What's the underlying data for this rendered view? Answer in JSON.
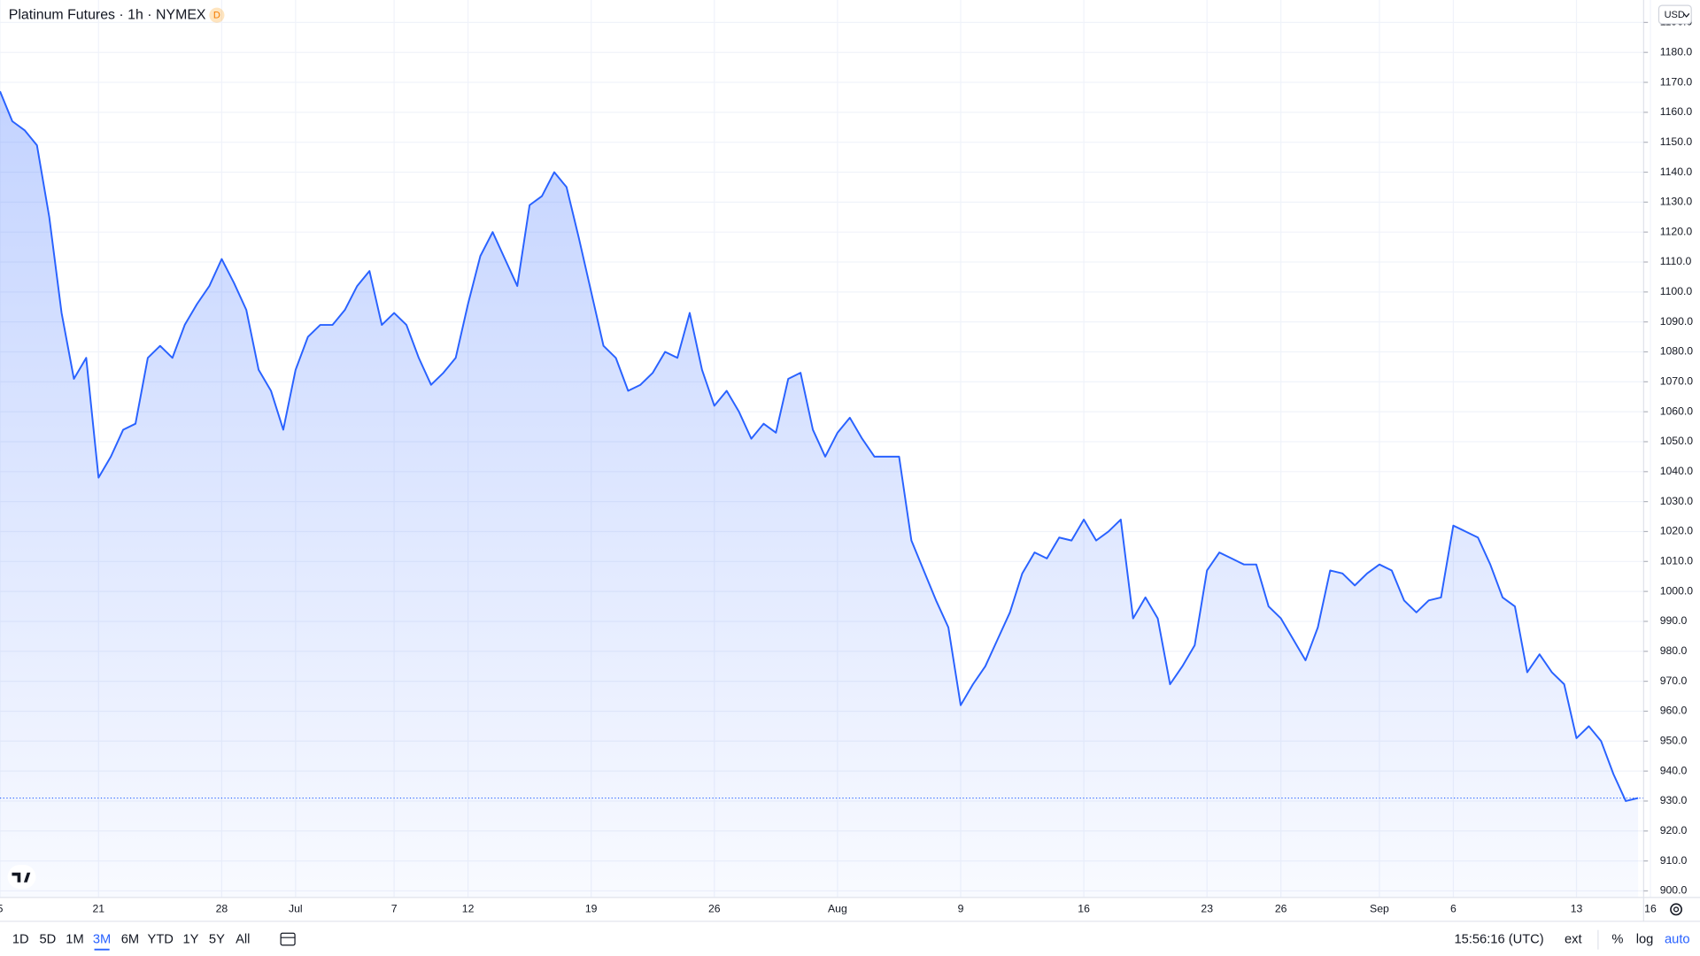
{
  "header": {
    "title": "Platinum Futures · 1h · NYMEX",
    "badge": "D",
    "currency": "USD"
  },
  "chart_data": {
    "type": "area",
    "categories": [
      "5",
      null,
      null,
      null,
      null,
      null,
      null,
      null,
      "21",
      null,
      null,
      null,
      null,
      null,
      null,
      null,
      null,
      null,
      "28",
      null,
      null,
      null,
      null,
      null,
      "Jul",
      null,
      null,
      null,
      null,
      null,
      null,
      null,
      "7",
      null,
      null,
      null,
      null,
      null,
      "12",
      null,
      null,
      null,
      null,
      null,
      null,
      null,
      null,
      null,
      "19",
      null,
      null,
      null,
      null,
      null,
      null,
      null,
      null,
      null,
      "26",
      null,
      null,
      null,
      null,
      null,
      null,
      null,
      null,
      null,
      "Aug",
      null,
      null,
      null,
      null,
      null,
      null,
      null,
      null,
      null,
      "9",
      null,
      null,
      null,
      null,
      null,
      null,
      null,
      null,
      null,
      "16",
      null,
      null,
      null,
      null,
      null,
      null,
      null,
      null,
      null,
      "23",
      null,
      null,
      null,
      null,
      null,
      "26",
      null,
      null,
      null,
      null,
      null,
      null,
      null,
      "Sep",
      null,
      null,
      null,
      null,
      null,
      "6",
      null,
      null,
      null,
      null,
      null,
      null,
      null,
      null,
      null,
      "13",
      null,
      null,
      null,
      null,
      null,
      "16"
    ],
    "values": [
      1167,
      1157,
      1154,
      1149,
      1125,
      1093,
      1071,
      1078,
      1038,
      1045,
      1054,
      1056,
      1078,
      1082,
      1078,
      1089,
      1096,
      1102,
      1111,
      1103,
      1094,
      1074,
      1067,
      1054,
      1074,
      1085,
      1089,
      1089,
      1094,
      1102,
      1107,
      1089,
      1093,
      1089,
      1078,
      1069,
      1073,
      1078,
      1096,
      1112,
      1120,
      1111,
      1102,
      1129,
      1132,
      1140,
      1135,
      1118,
      1100,
      1082,
      1078,
      1067,
      1069,
      1073,
      1080,
      1078,
      1093,
      1074,
      1062,
      1067,
      1060,
      1051,
      1056,
      1053,
      1071,
      1073,
      1054,
      1045,
      1053,
      1058,
      1051,
      1045,
      1045,
      1045,
      1017,
      1007,
      997,
      988,
      962,
      969,
      975,
      984,
      993,
      1006,
      1013,
      1011,
      1018,
      1017,
      1024,
      1017,
      1020,
      1024,
      991,
      998,
      991,
      969,
      975,
      982,
      1007,
      1013,
      1011,
      1009,
      1009,
      995,
      991,
      984,
      977,
      988,
      1007,
      1006,
      1002,
      1006,
      1009,
      1007,
      997,
      993,
      997,
      998,
      1022,
      1020,
      1018,
      1009,
      998,
      995,
      973,
      979,
      973,
      969,
      951,
      955,
      950,
      939,
      930,
      931,
      null
    ],
    "color": "#2962ff",
    "ylim": [
      897.8,
      1197.5
    ],
    "yticks": [
      {
        "value": 900,
        "label": "900.0"
      },
      {
        "value": 910,
        "label": "910.0"
      },
      {
        "value": 920,
        "label": "920.0"
      },
      {
        "value": 930,
        "label": "930.0"
      },
      {
        "value": 940,
        "label": "940.0"
      },
      {
        "value": 950,
        "label": "950.0"
      },
      {
        "value": 960,
        "label": "960.0"
      },
      {
        "value": 970,
        "label": "970.0"
      },
      {
        "value": 980,
        "label": "980.0"
      },
      {
        "value": 990,
        "label": "990.0"
      },
      {
        "value": 1000,
        "label": "1000.0"
      },
      {
        "value": 1010,
        "label": "1010.0"
      },
      {
        "value": 1020,
        "label": "1020.0"
      },
      {
        "value": 1030,
        "label": "1030.0"
      },
      {
        "value": 1040,
        "label": "1040.0"
      },
      {
        "value": 1050,
        "label": "1050.0"
      },
      {
        "value": 1060,
        "label": "1060.0"
      },
      {
        "value": 1070,
        "label": "1070.0"
      },
      {
        "value": 1080,
        "label": "1080.0"
      },
      {
        "value": 1090,
        "label": "1090.0"
      },
      {
        "value": 1100,
        "label": "1100.0"
      },
      {
        "value": 1110,
        "label": "1110.0"
      },
      {
        "value": 1120,
        "label": "1120.0"
      },
      {
        "value": 1130,
        "label": "1130.0"
      },
      {
        "value": 1140,
        "label": "1140.0"
      },
      {
        "value": 1150,
        "label": "1150.0"
      },
      {
        "value": 1160,
        "label": "1160.0"
      },
      {
        "value": 1170,
        "label": "1170.0"
      },
      {
        "value": 1180,
        "label": "1180.0"
      },
      {
        "value": 1190,
        "label": "1190.0"
      }
    ],
    "grid": true
  },
  "toolbar": {
    "ranges": [
      "1D",
      "5D",
      "1M",
      "3M",
      "6M",
      "YTD",
      "1Y",
      "5Y",
      "All"
    ],
    "active_range": 3,
    "clock": "15:56:16 (UTC)",
    "session": "ext",
    "scale_options": [
      "%",
      "log",
      "auto"
    ]
  }
}
